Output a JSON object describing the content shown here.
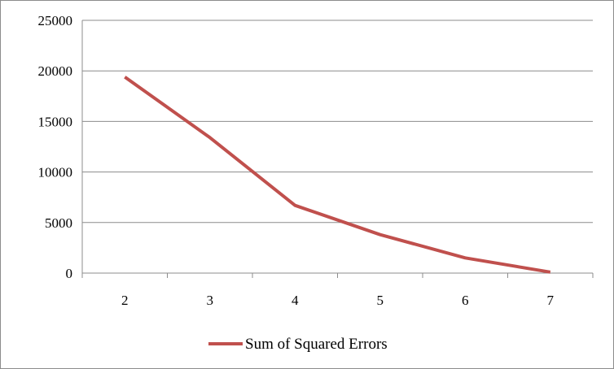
{
  "chart_data": {
    "type": "line",
    "x": [
      "2",
      "3",
      "4",
      "5",
      "6",
      "7"
    ],
    "series": [
      {
        "name": "Sum of Squared Errors",
        "values": [
          19400,
          13400,
          6700,
          3800,
          1500,
          100
        ],
        "color": "#c0504d"
      }
    ],
    "ylim": [
      0,
      25000
    ],
    "yticks": [
      "0",
      "5000",
      "10000",
      "15000",
      "20000",
      "25000"
    ],
    "title": "",
    "xlabel": "",
    "ylabel": "",
    "grid": true,
    "legend_position": "bottom"
  }
}
